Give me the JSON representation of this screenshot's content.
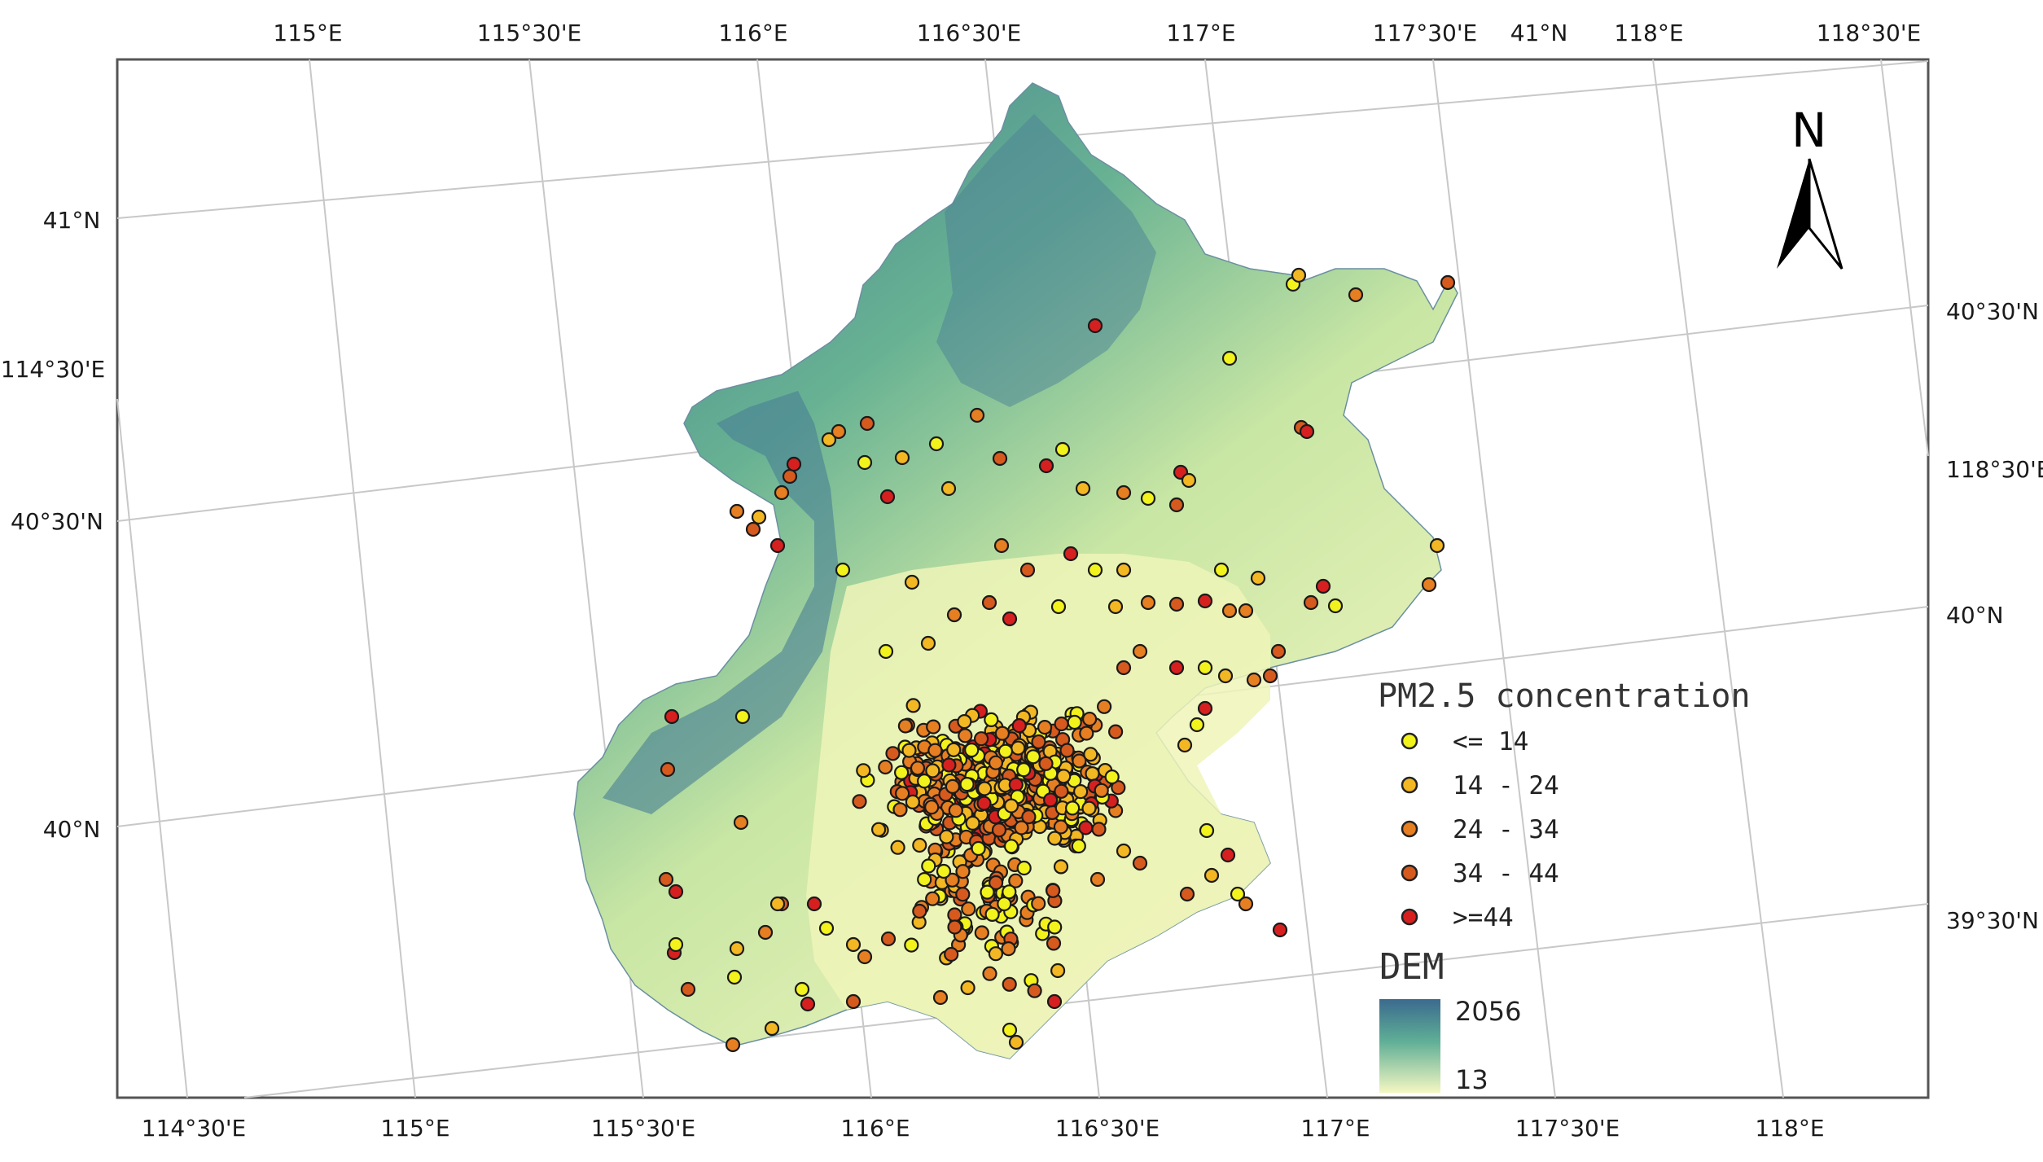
{
  "labels": {
    "top": [
      "115°E",
      "115°30'E",
      "116°E",
      "116°30'E",
      "117°E",
      "117°30'E",
      "41°N",
      "118°E",
      "118°30'E"
    ],
    "bottom": [
      "114°30'E",
      "115°E",
      "115°30'E",
      "116°E",
      "116°30'E",
      "117°E",
      "117°30'E",
      "118°E"
    ],
    "left": [
      "41°N",
      "114°30'E",
      "40°30'N",
      "40°N"
    ],
    "right": [
      "40°30'N",
      "118°30'E",
      "40°N",
      "39°30'N"
    ]
  },
  "north_arrow": {
    "label": "N"
  },
  "legend": {
    "title": "PM2.5 concentration",
    "classes": [
      {
        "label": "<= 14",
        "color": "#f2f21c"
      },
      {
        "label": "14 - 24",
        "color": "#f2b722"
      },
      {
        "label": "24 - 34",
        "color": "#e67e22"
      },
      {
        "label": "34 - 44",
        "color": "#d65a1e"
      },
      {
        "label": ">=44",
        "color": "#d62020"
      }
    ]
  },
  "dem": {
    "title": "DEM",
    "max_label": "2056",
    "min_label": "13",
    "colors": {
      "high": "#3b6a8e",
      "mid": "#5fae96",
      "low": "#f4f7c2"
    }
  }
}
